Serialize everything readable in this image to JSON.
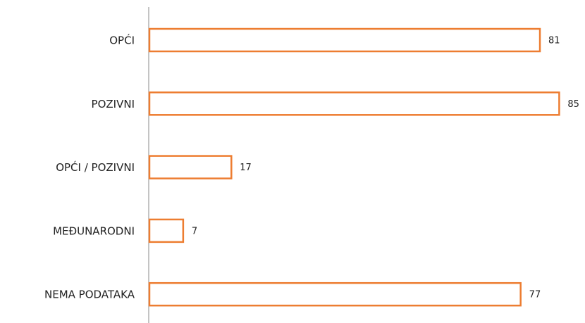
{
  "chart_data": {
    "type": "bar",
    "orientation": "horizontal",
    "categories": [
      "OPĆI",
      "POZIVNI",
      "OPĆI / POZIVNI",
      "MEĐUNARODNI",
      "NEMA PODATAKA"
    ],
    "values": [
      81,
      85,
      17,
      7,
      77
    ],
    "color": "#ed7d31"
  }
}
